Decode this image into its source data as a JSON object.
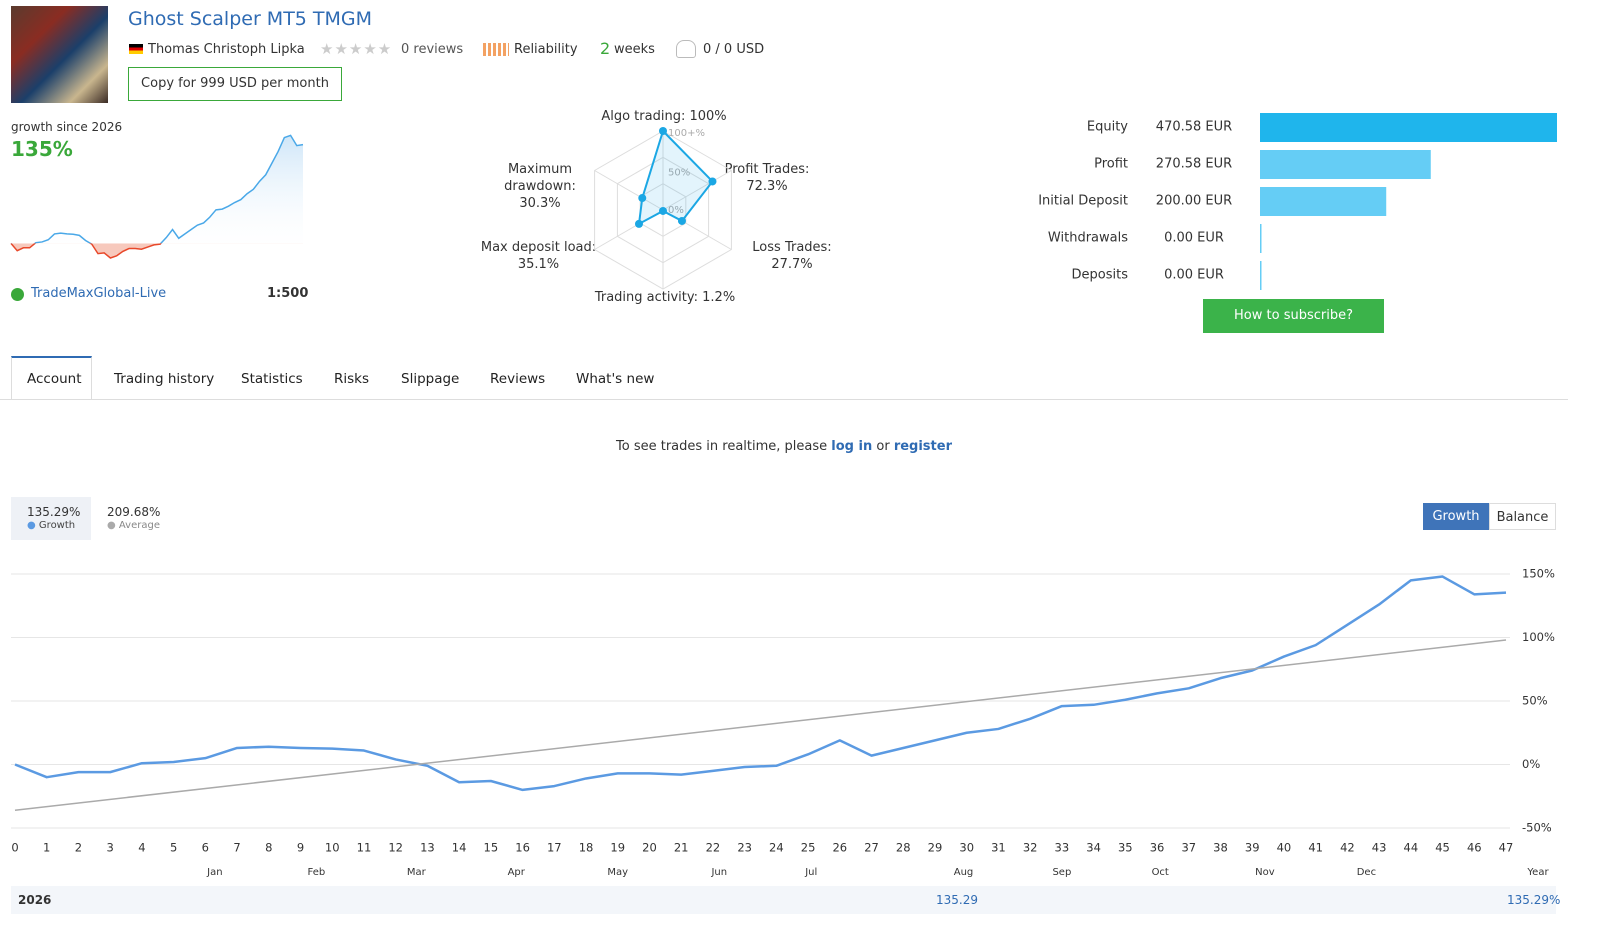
{
  "header": {
    "title": "Ghost Scalper MT5 TMGM",
    "author": "Thomas Christoph Lipka",
    "reviews": "0 reviews",
    "reliability": "Reliability",
    "weeks_value": "2",
    "weeks_unit": "weeks",
    "subscribers": "0 / 0 USD",
    "copy_button": "Copy for 999 USD per month"
  },
  "summary": {
    "growth_label": "growth since 2026",
    "growth_value": "135%",
    "broker": "TradeMaxGlobal-Live",
    "leverage": "1:500"
  },
  "radar": {
    "labels": [
      "Algo trading: 100%",
      "Profit Trades: 72.3%",
      "Loss Trades: 27.7%",
      "Trading activity: 1.2%",
      "Max deposit load: 35.1%",
      "Maximum drawdown: 30.3%"
    ],
    "values": [
      100,
      72.3,
      27.7,
      1.2,
      35.1,
      30.3
    ],
    "rings": [
      {
        "value": 0,
        "label": "0%"
      },
      {
        "value": 50,
        "label": "50%"
      },
      {
        "value": 100,
        "label": "100+%"
      }
    ],
    "color": "#1ba7e4"
  },
  "balance": {
    "categories": [
      "Equity",
      "Profit",
      "Initial Deposit",
      "Withdrawals",
      "Deposits"
    ],
    "values": [
      470.58,
      270.58,
      200.0,
      0.0,
      0.0
    ],
    "value_labels": [
      "470.58 EUR",
      "270.58 EUR",
      "200.00 EUR",
      "0.00 EUR",
      "0.00 EUR"
    ],
    "colors": [
      "#1fb5ec",
      "#65cdf5",
      "#65cdf5",
      "#65cdf5",
      "#65cdf5"
    ],
    "button": "How to subscribe?"
  },
  "tabs": [
    "Account",
    "Trading history",
    "Statistics",
    "Risks",
    "Slippage",
    "Reviews",
    "What's new"
  ],
  "notice": {
    "text": "To see trades in realtime, please",
    "login": "log in",
    "or": "or",
    "register": "register"
  },
  "chart_data": {
    "type": "line",
    "view_buttons": [
      "Growth",
      "Balance"
    ],
    "x": [
      0,
      1,
      2,
      3,
      4,
      5,
      6,
      7,
      8,
      9,
      10,
      11,
      12,
      13,
      14,
      15,
      16,
      17,
      18,
      19,
      20,
      21,
      22,
      23,
      24,
      25,
      26,
      27,
      28,
      29,
      30,
      31,
      32,
      33,
      34,
      35,
      36,
      37,
      38,
      39,
      40,
      41,
      42,
      43,
      44,
      45,
      46,
      47
    ],
    "series": [
      {
        "name": "Growth",
        "total_label": "135.29%",
        "color": "#5b9ae2",
        "values": [
          0,
          -10,
          -6,
          -6,
          1,
          2,
          5,
          13,
          14,
          13,
          12.5,
          11,
          4,
          -1,
          -14,
          -13,
          -20,
          -17,
          -11,
          -7,
          -7,
          -8,
          -5,
          -2,
          -1,
          8,
          19,
          7,
          13,
          19,
          25,
          28,
          36,
          46,
          47,
          51,
          56,
          60,
          68,
          74,
          85,
          94,
          110,
          126,
          145,
          148,
          134,
          135.29
        ]
      },
      {
        "name": "Average",
        "total_label": "209.68%",
        "color": "#aaaaaa",
        "x": [
          0,
          47
        ],
        "values": [
          -36,
          98
        ]
      }
    ],
    "xlim": [
      0,
      47
    ],
    "xticks": [
      0,
      1,
      2,
      3,
      4,
      5,
      6,
      7,
      8,
      9,
      10,
      11,
      12,
      13,
      14,
      15,
      16,
      17,
      18,
      19,
      20,
      21,
      22,
      23,
      24,
      25,
      26,
      27,
      28,
      29,
      30,
      31,
      32,
      33,
      34,
      35,
      36,
      37,
      38,
      39,
      40,
      41,
      42,
      43,
      44,
      45,
      46,
      47
    ],
    "month_ticks": [
      {
        "value": 6.3,
        "label": "Jan"
      },
      {
        "value": 9.5,
        "label": "Feb"
      },
      {
        "value": 12.65,
        "label": "Mar"
      },
      {
        "value": 15.8,
        "label": "Apr"
      },
      {
        "value": 19,
        "label": "May"
      },
      {
        "value": 22.2,
        "label": "Jun"
      },
      {
        "value": 25.1,
        "label": "Jul"
      },
      {
        "value": 29.9,
        "label": "Aug"
      },
      {
        "value": 33,
        "label": "Sep"
      },
      {
        "value": 36.1,
        "label": "Oct"
      },
      {
        "value": 39.4,
        "label": "Nov"
      },
      {
        "value": 42.6,
        "label": "Dec"
      }
    ],
    "year_label": "Year",
    "ylim": [
      -50,
      150
    ],
    "yticks": [
      {
        "value": -50,
        "label": "-50%"
      },
      {
        "value": 0,
        "label": "0%"
      },
      {
        "value": 50,
        "label": "50%"
      },
      {
        "value": 100,
        "label": "100%"
      },
      {
        "value": 150,
        "label": "150%"
      }
    ],
    "grid": true,
    "footer": {
      "year": "2026",
      "value": "135.29",
      "total": "135.29%"
    }
  }
}
